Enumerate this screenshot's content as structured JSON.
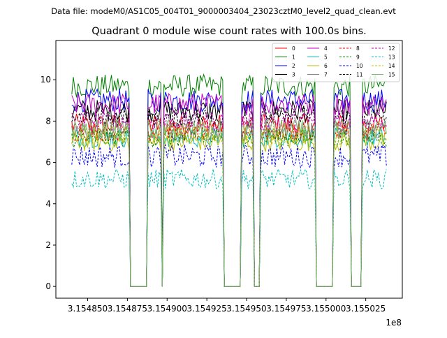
{
  "chart_data": {
    "type": "line",
    "suptitle": "Data file: modeM0/AS1C05_004T01_9000003404_23023cztM0_level2_quad_clean.evt",
    "title": "Quadrant 0 module wise count rates with 100.0s bins.",
    "xlabel": "",
    "ylabel": "",
    "x_offset_label": "1e8",
    "bin_size_s": 100,
    "xlim": [
      315483000,
      315504800
    ],
    "ylim": [
      -0.57,
      11.9
    ],
    "x_ticks": [
      315485000,
      315487500,
      315490000,
      315492500,
      315495000,
      315497500,
      315500000,
      315502500
    ],
    "x_tick_labels": [
      "3.154850",
      "3.154875",
      "3.154900",
      "3.154925",
      "3.154950",
      "3.154975",
      "3.155000",
      "3.155025"
    ],
    "y_ticks": [
      0,
      2,
      4,
      6,
      8,
      10
    ],
    "y_tick_labels": [
      "0",
      "2",
      "4",
      "6",
      "8",
      "10"
    ],
    "time_range": [
      315484000,
      315503800
    ],
    "good_intervals": [
      [
        315484000,
        315487600
      ],
      [
        315488800,
        315489600
      ],
      [
        315489800,
        315493500
      ],
      [
        315494700,
        315495400
      ],
      [
        315495900,
        315499300
      ],
      [
        315500500,
        315501500
      ],
      [
        315502300,
        315503800
      ]
    ],
    "legend": {
      "placement": "top-right",
      "columns": 4
    },
    "series": [
      {
        "name": "0",
        "color": "#ff0000",
        "dash": false,
        "mean_rate": 7.8,
        "noise": 0.35
      },
      {
        "name": "1",
        "color": "#008000",
        "dash": false,
        "mean_rate": 9.7,
        "noise": 0.35
      },
      {
        "name": "2",
        "color": "#0000ff",
        "dash": false,
        "mean_rate": 9.0,
        "noise": 0.35
      },
      {
        "name": "3",
        "color": "#000000",
        "dash": false,
        "mean_rate": 8.5,
        "noise": 0.35
      },
      {
        "name": "4",
        "color": "#bf00bf",
        "dash": false,
        "mean_rate": 8.8,
        "noise": 0.35
      },
      {
        "name": "5",
        "color": "#00bfbf",
        "dash": false,
        "mean_rate": 7.2,
        "noise": 0.3
      },
      {
        "name": "6",
        "color": "#bfbf00",
        "dash": false,
        "mean_rate": 7.0,
        "noise": 0.3
      },
      {
        "name": "7",
        "color": "#808080",
        "dash": false,
        "mean_rate": 7.5,
        "noise": 0.3
      },
      {
        "name": "8",
        "color": "#ff0000",
        "dash": true,
        "mean_rate": 7.5,
        "noise": 0.3
      },
      {
        "name": "9",
        "color": "#008000",
        "dash": true,
        "mean_rate": 7.2,
        "noise": 0.3
      },
      {
        "name": "10",
        "color": "#0000ff",
        "dash": true,
        "mean_rate": 6.3,
        "noise": 0.35
      },
      {
        "name": "11",
        "color": "#000000",
        "dash": true,
        "mean_rate": 8.2,
        "noise": 0.3
      },
      {
        "name": "12",
        "color": "#bf00bf",
        "dash": true,
        "mean_rate": 8.0,
        "noise": 0.3
      },
      {
        "name": "13",
        "color": "#00bfbf",
        "dash": true,
        "mean_rate": 5.2,
        "noise": 0.3
      },
      {
        "name": "14",
        "color": "#bfbf00",
        "dash": true,
        "mean_rate": 7.3,
        "noise": 0.3
      },
      {
        "name": "15",
        "color": "#77bb66",
        "dash": false,
        "mean_rate": 7.6,
        "noise": 0.3
      }
    ]
  }
}
